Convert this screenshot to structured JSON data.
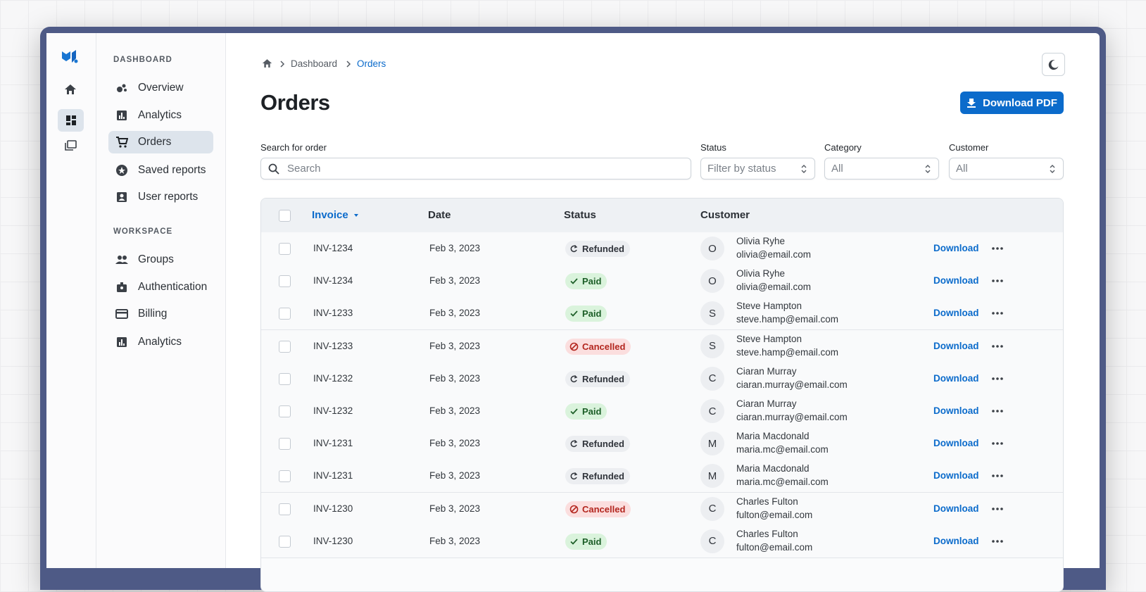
{
  "rail": {
    "logo": "MJ"
  },
  "sidebar": [
    {
      "title": "DASHBOARD",
      "items": [
        "Overview",
        "Analytics",
        "Orders",
        "Saved reports",
        "User reports"
      ],
      "selected": 2
    },
    {
      "title": "WORKSPACE",
      "items": [
        "Groups",
        "Authentication",
        "Billing",
        "Analytics"
      ]
    }
  ],
  "breadcrumb": [
    "Dashboard",
    "Orders"
  ],
  "header": {
    "title": "Orders",
    "button": "Download PDF"
  },
  "filters": {
    "search": {
      "label": "Search for order",
      "placeholder": "Search"
    },
    "selects": [
      {
        "label": "Status",
        "placeholder": "Filter by status"
      },
      {
        "label": "Category",
        "placeholder": "All"
      },
      {
        "label": "Customer",
        "placeholder": "All"
      }
    ]
  },
  "table": {
    "columns": [
      "Invoice",
      "Date",
      "Status",
      "Customer"
    ],
    "action": "Download",
    "status_styles": [
      {
        "label": "Refunded",
        "bg": "#eceef1",
        "fg": "#30343b",
        "icon": "refresh"
      },
      {
        "label": "Paid",
        "bg": "#daf3dc",
        "fg": "#1c5e27",
        "icon": "check"
      },
      {
        "label": "Cancelled",
        "bg": "#fbdede",
        "fg": "#b3261e",
        "icon": "block"
      }
    ],
    "rows": [
      {
        "invoice": "INV-1234",
        "date": "Feb 3, 2023",
        "status": "Refunded",
        "initial": "O",
        "name": "Olivia Ryhe",
        "email": "olivia@email.com"
      },
      {
        "invoice": "INV-1234",
        "date": "Feb 3, 2023",
        "status": "Paid",
        "initial": "O",
        "name": "Olivia Ryhe",
        "email": "olivia@email.com"
      },
      {
        "invoice": "INV-1233",
        "date": "Feb 3, 2023",
        "status": "Paid",
        "initial": "S",
        "name": "Steve Hampton",
        "email": "steve.hamp@email.com"
      },
      {
        "invoice": "INV-1233",
        "date": "Feb 3, 2023",
        "status": "Cancelled",
        "initial": "S",
        "name": "Steve Hampton",
        "email": "steve.hamp@email.com"
      },
      {
        "invoice": "INV-1232",
        "date": "Feb 3, 2023",
        "status": "Refunded",
        "initial": "C",
        "name": "Ciaran Murray",
        "email": "ciaran.murray@email.com"
      },
      {
        "invoice": "INV-1232",
        "date": "Feb 3, 2023",
        "status": "Paid",
        "initial": "C",
        "name": "Ciaran Murray",
        "email": "ciaran.murray@email.com"
      },
      {
        "invoice": "INV-1231",
        "date": "Feb 3, 2023",
        "status": "Refunded",
        "initial": "M",
        "name": "Maria Macdonald",
        "email": "maria.mc@email.com"
      },
      {
        "invoice": "INV-1231",
        "date": "Feb 3, 2023",
        "status": "Refunded",
        "initial": "M",
        "name": "Maria Macdonald",
        "email": "maria.mc@email.com"
      },
      {
        "invoice": "INV-1230",
        "date": "Feb 3, 2023",
        "status": "Cancelled",
        "initial": "C",
        "name": "Charles Fulton",
        "email": "fulton@email.com"
      },
      {
        "invoice": "INV-1230",
        "date": "Feb 3, 2023",
        "status": "Paid",
        "initial": "C",
        "name": "Charles Fulton",
        "email": "fulton@email.com"
      }
    ]
  }
}
